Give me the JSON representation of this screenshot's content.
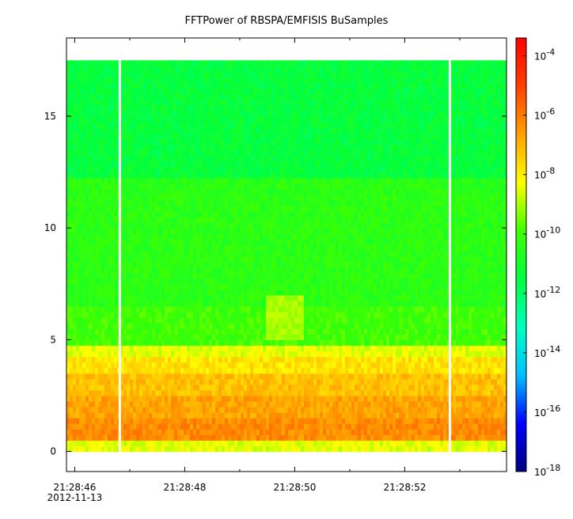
{
  "chart_data": {
    "type": "heatmap",
    "title": "FFTPower of RBSPA/EMFISIS  BuSamples",
    "xlabel": "",
    "ylabel": "",
    "xlim": [
      "21:28:45.85",
      "21:28:53.85"
    ],
    "ylim": [
      -0.9,
      18.5
    ],
    "grid": false,
    "x_ticks": [
      {
        "t": 0.15,
        "label": "21:28:46",
        "sublabel": "2012-11-13"
      },
      {
        "t": 2.15,
        "label": "21:28:48",
        "sublabel": ""
      },
      {
        "t": 4.15,
        "label": "21:28:50",
        "sublabel": ""
      },
      {
        "t": 6.15,
        "label": "21:28:52",
        "sublabel": ""
      }
    ],
    "x_minor_ticks": [
      1.15,
      3.15,
      5.15,
      7.15
    ],
    "y_ticks": [
      {
        "v": 0,
        "label": "0"
      },
      {
        "v": 5,
        "label": "5"
      },
      {
        "v": 10,
        "label": "10"
      },
      {
        "v": 15,
        "label": "15"
      }
    ],
    "y_data_range": [
      0,
      17.5
    ],
    "data_gaps_seconds": [
      0.97,
      6.97
    ],
    "frequency_bands": [
      {
        "y0": 0.0,
        "y1": 0.5,
        "log_power": -8.5
      },
      {
        "y0": 0.5,
        "y1": 1.5,
        "log_power": -6.3
      },
      {
        "y0": 1.5,
        "y1": 2.5,
        "log_power": -6.7
      },
      {
        "y0": 2.5,
        "y1": 3.5,
        "log_power": -7.2
      },
      {
        "y0": 3.5,
        "y1": 4.2,
        "log_power": -7.8
      },
      {
        "y0": 4.2,
        "y1": 4.8,
        "log_power": -8.5
      },
      {
        "y0": 4.8,
        "y1": 6.5,
        "log_power": -10.0
      },
      {
        "y0": 6.5,
        "y1": 12.2,
        "log_power": -10.4
      },
      {
        "y0": 12.2,
        "y1": 17.5,
        "log_power": -11.4
      }
    ],
    "enhancement": {
      "t0": 3.6,
      "t1": 4.3,
      "y0": 5.0,
      "y1": 7.0,
      "log_power": -9.0
    },
    "colorbar": {
      "scale": "log",
      "range_log": [
        -18,
        -3.4
      ],
      "ticks": [
        {
          "exp": -4,
          "label_base": "10",
          "label_exp": "-4"
        },
        {
          "exp": -6,
          "label_base": "10",
          "label_exp": "-6"
        },
        {
          "exp": -8,
          "label_base": "10",
          "label_exp": "-8"
        },
        {
          "exp": -10,
          "label_base": "10",
          "label_exp": "-10"
        },
        {
          "exp": -12,
          "label_base": "10",
          "label_exp": "-12"
        },
        {
          "exp": -14,
          "label_base": "10",
          "label_exp": "-14"
        },
        {
          "exp": -16,
          "label_base": "10",
          "label_exp": "-16"
        },
        {
          "exp": -18,
          "label_base": "10",
          "label_exp": "-18"
        }
      ],
      "colors": [
        "#000080",
        "#0000ff",
        "#00c0ff",
        "#00ffc0",
        "#00ff40",
        "#40ff00",
        "#ffff00",
        "#ffa000",
        "#ff4000",
        "#ff0000"
      ]
    }
  }
}
